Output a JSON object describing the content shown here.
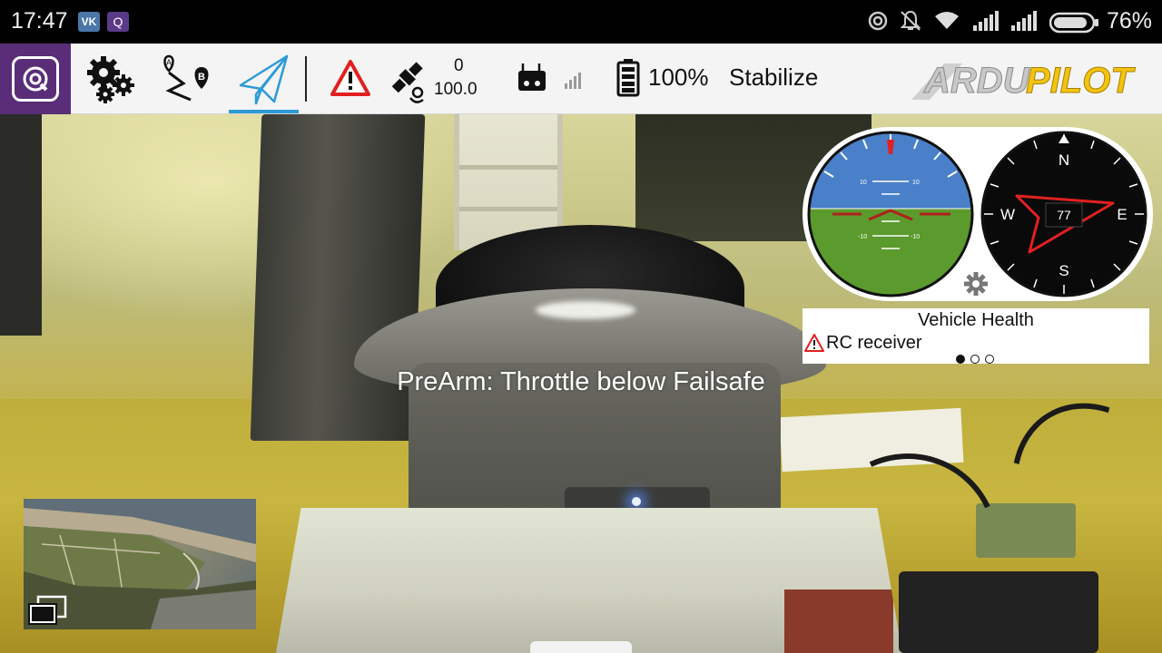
{
  "status_bar": {
    "time": "17:47",
    "app_icon_vk": "VK",
    "app_icon_qgc": "Q",
    "icons": [
      "hotspot-icon",
      "mute-icon",
      "wifi-icon",
      "signal-icon",
      "signal-icon",
      "battery-icon"
    ],
    "battery_percent": "76%"
  },
  "toolbar": {
    "app_menu_icon": "qgc-logo-icon",
    "settings_icon": "gears-icon",
    "plan_icon": "plan-route-icon",
    "fly_icon": "paper-plane-icon",
    "warning_icon": "warning-triangle-icon",
    "gps": {
      "satellite_count": "0",
      "hdop": "100.0"
    },
    "rc_icon": "rc-transmitter-icon",
    "rc_signal_icon": "signal-bars-icon",
    "vehicle_battery": "100%",
    "flight_mode": "Stabilize",
    "brand_logo": "ARDUPILOT",
    "brand_logo_parts": [
      "ARDU",
      "PILOT"
    ],
    "active_view": "fly"
  },
  "instruments": {
    "attitude": {
      "pitch_labels": [
        "10",
        "10",
        "-10",
        "-10"
      ]
    },
    "compass": {
      "cardinals": [
        "N",
        "E",
        "S",
        "W"
      ],
      "heading": "77"
    },
    "settings_icon": "gear-icon"
  },
  "vehicle_health": {
    "title": "Vehicle Health",
    "items": [
      "RC receiver"
    ]
  },
  "pager": {
    "pages": 3,
    "active": 0
  },
  "message": "PreArm: Throttle below Failsafe",
  "colors": {
    "qgc_purple": "#5a2d78",
    "active_tab": "#2d9ad7",
    "warning_red": "#e02020",
    "sky": "#4a7fc9",
    "ground": "#5b9a2c"
  }
}
